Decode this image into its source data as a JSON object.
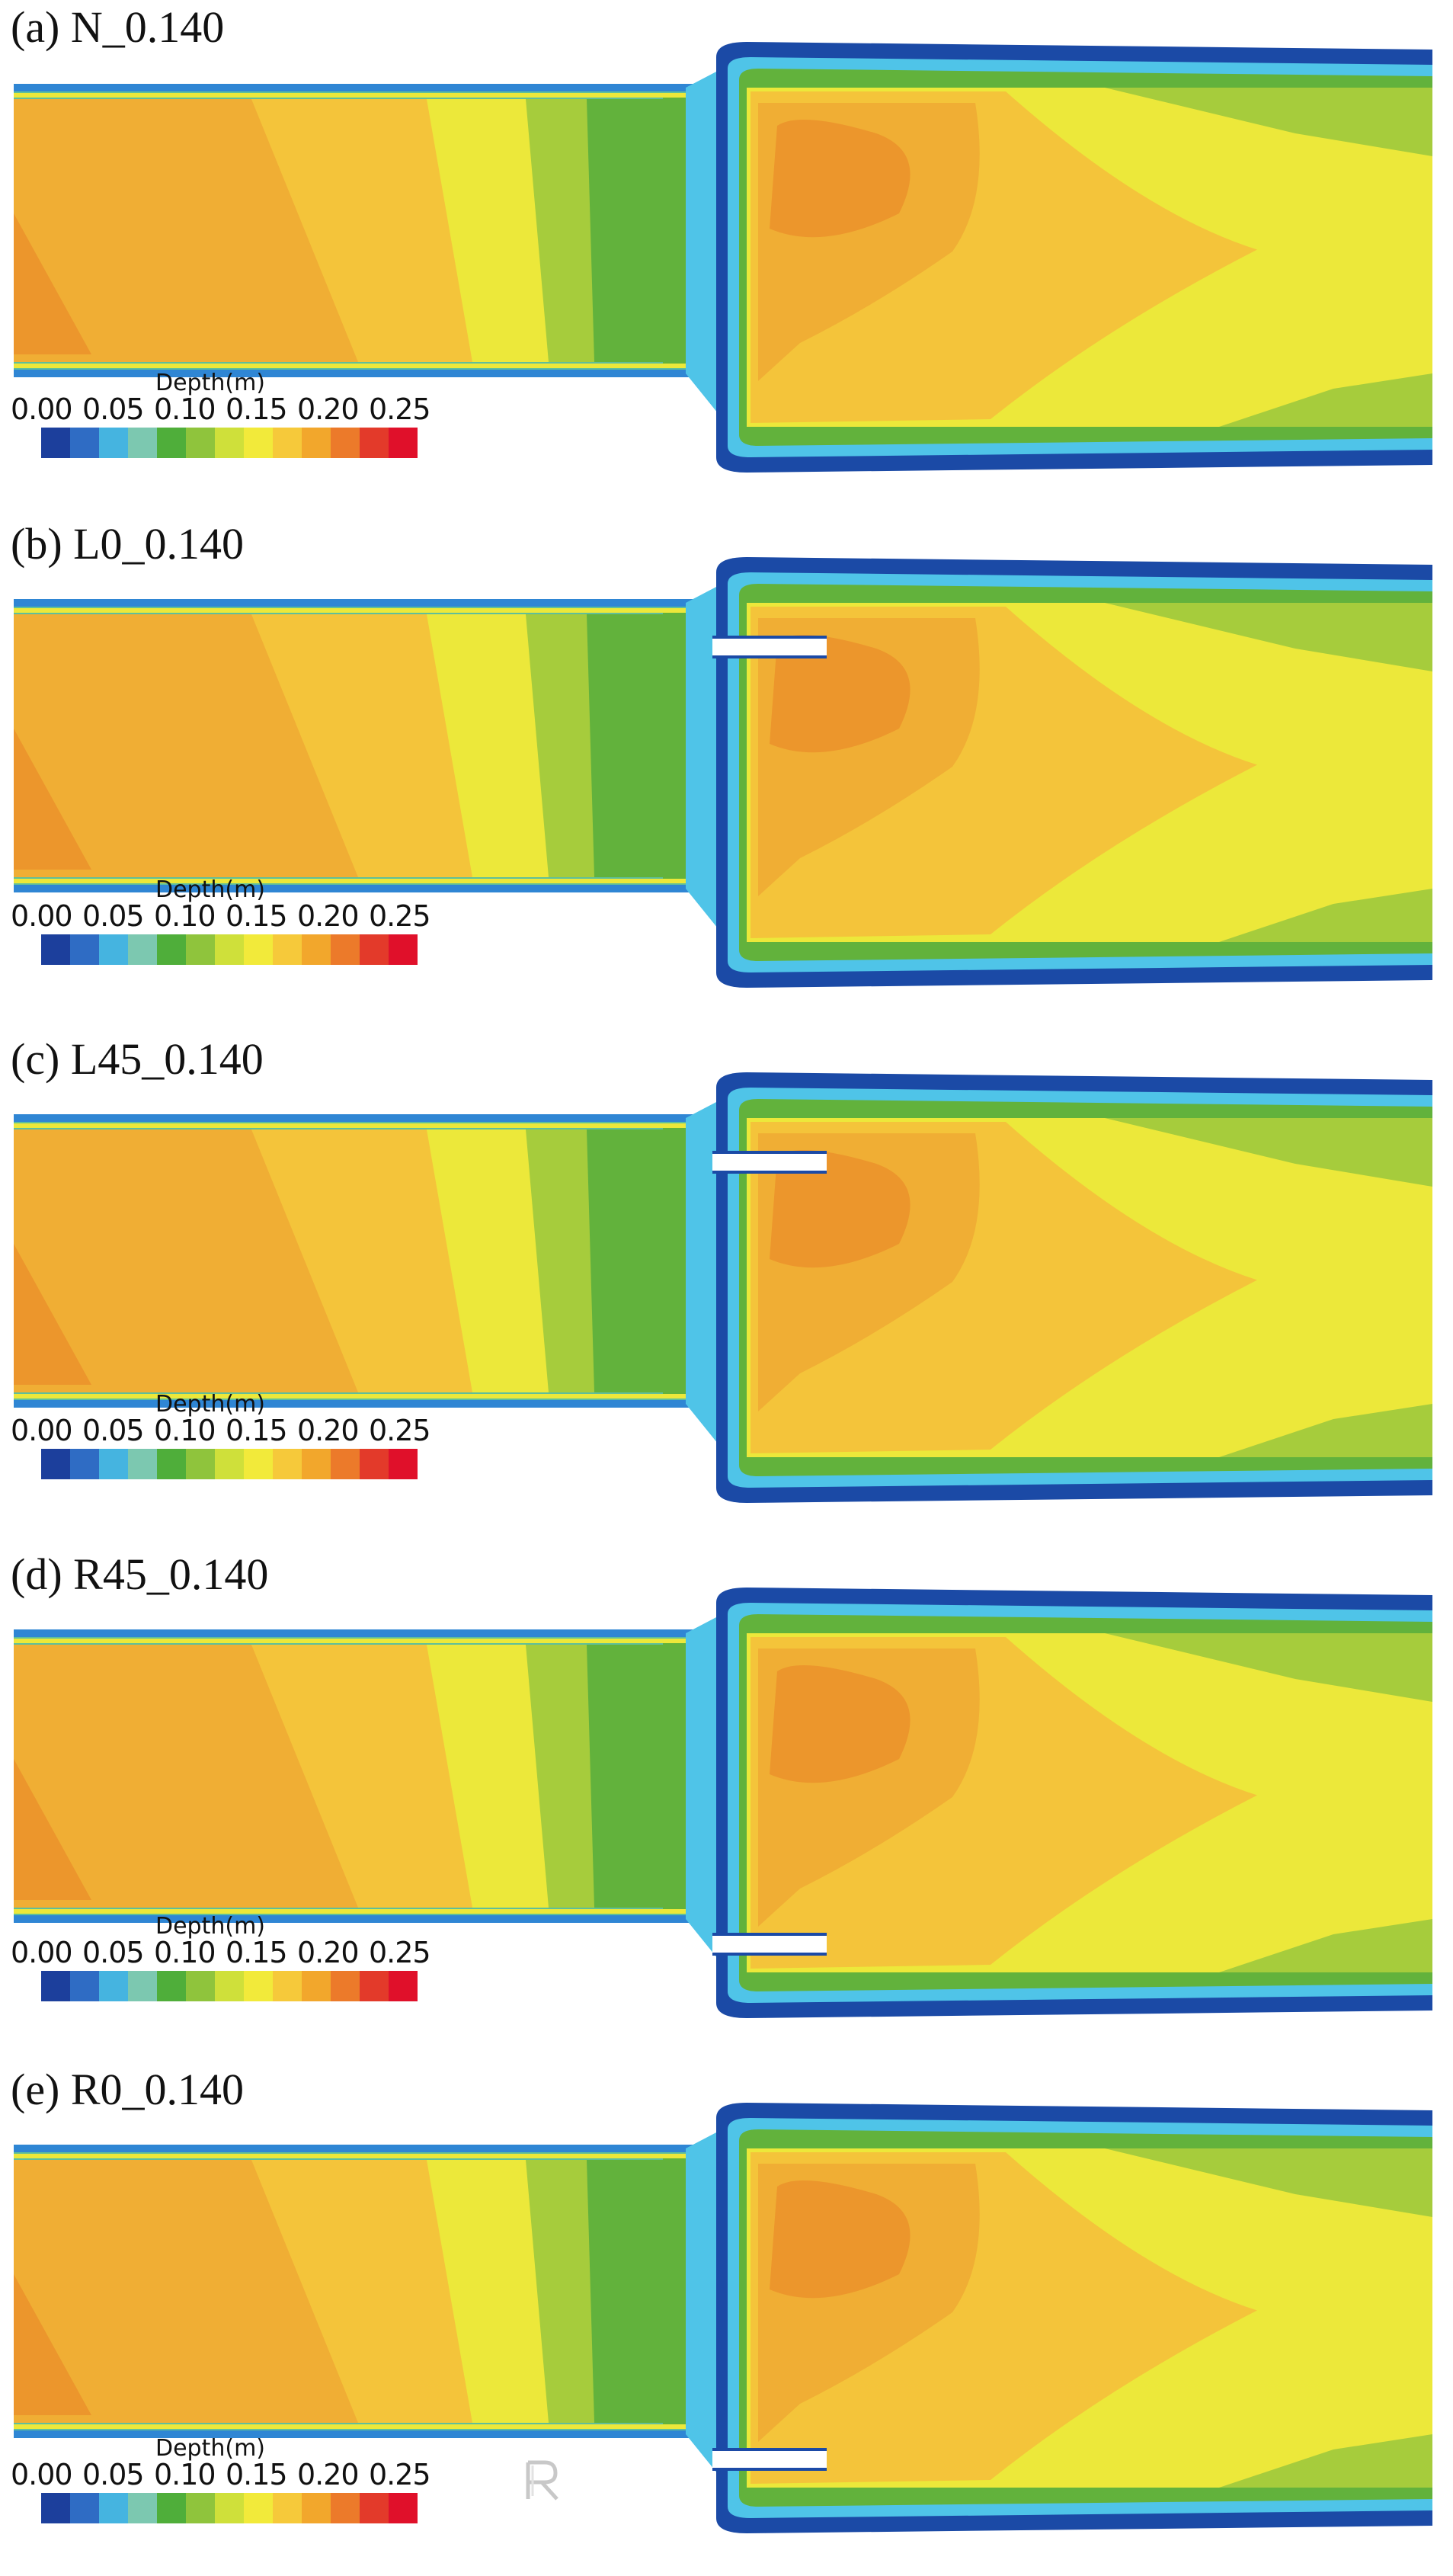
{
  "panels": [
    {
      "label": "(a) N_0.140",
      "vanes": "none"
    },
    {
      "label": "(b) L0_0.140",
      "vanes": "left-straight"
    },
    {
      "label": "(c) L45_0.140",
      "vanes": "left-angled"
    },
    {
      "label": "(d) R45_0.140",
      "vanes": "right-angled"
    },
    {
      "label": "(e) R0_0.140",
      "vanes": "right-straight"
    }
  ],
  "legend": {
    "title": "Depth(m)",
    "ticks": [
      "0.00",
      "0.05",
      "0.10",
      "0.15",
      "0.20",
      "0.25"
    ],
    "colors": [
      "#1c3f9c",
      "#2f6cc4",
      "#45b4e0",
      "#7cc8b0",
      "#4fae3a",
      "#8fc43c",
      "#cfe03a",
      "#f2ea3a",
      "#f6c93a",
      "#f2a72c",
      "#ec7a2a",
      "#e33a2a",
      "#e0102a"
    ]
  },
  "field_colors": {
    "deep_blue": "#1b4aa6",
    "blue": "#2f86d4",
    "cyan": "#4fc4e8",
    "teal": "#5fbf9a",
    "green": "#62b23c",
    "light_green": "#a6cc3c",
    "yellow": "#ece83a",
    "light_orange": "#f4c43a",
    "orange": "#f0ae34",
    "dark_orange": "#ec962c"
  },
  "watermark_icon": "r-logo-icon"
}
